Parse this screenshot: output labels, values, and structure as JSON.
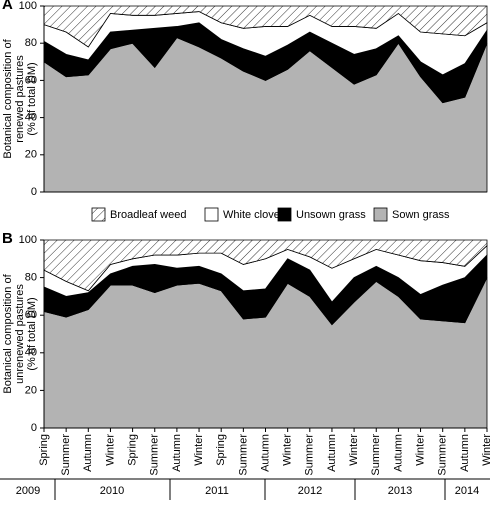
{
  "chart_data": [
    {
      "type": "stacked-area",
      "panel_label": "A",
      "ylabel": [
        "Botanical composition of",
        "renewed pastures",
        "(% of total DM)"
      ],
      "categories": [
        "Spring",
        "Summer",
        "Autumn",
        "Winter",
        "Spring",
        "Summer",
        "Autumn",
        "Winter",
        "Spring",
        "Summer",
        "Autumn",
        "Winter",
        "Summer",
        "Autumn",
        "Winter",
        "Summer",
        "Autumn",
        "Winter",
        "Summer",
        "Autumn",
        "Winter"
      ],
      "ylim": [
        0,
        100
      ],
      "yticks": [
        0,
        20,
        40,
        60,
        80,
        100
      ],
      "series": [
        {
          "name": "Sown grass",
          "color": "#b3b3b3",
          "values": [
            70,
            62,
            63,
            77,
            80,
            67,
            83,
            78,
            72,
            65,
            60,
            66,
            76,
            67,
            58,
            63,
            80,
            62,
            48,
            51,
            80
          ]
        },
        {
          "name": "Unsown grass",
          "color": "#000000",
          "values": [
            11,
            12,
            8,
            9,
            7,
            21,
            6,
            13,
            10,
            12,
            13,
            13,
            10,
            13,
            16,
            14,
            4,
            8,
            15,
            18,
            7
          ]
        },
        {
          "name": "White clover",
          "color": "#ffffff",
          "values": [
            9,
            12,
            7,
            10,
            8,
            7,
            7,
            6,
            9,
            11,
            16,
            10,
            9,
            9,
            15,
            11,
            12,
            16,
            22,
            15,
            4
          ]
        },
        {
          "name": "Broadleaf weed",
          "color": "#ffffff",
          "hatch": true,
          "values": [
            10,
            14,
            22,
            4,
            5,
            5,
            4,
            3,
            9,
            12,
            11,
            11,
            5,
            11,
            11,
            12,
            4,
            14,
            15,
            16,
            9
          ]
        }
      ]
    },
    {
      "type": "stacked-area",
      "panel_label": "B",
      "ylabel": [
        "Botanical composition of",
        "unrenewed pastures",
        "(% of total DM)"
      ],
      "categories": [
        "Spring",
        "Summer",
        "Autumn",
        "Winter",
        "Spring",
        "Summer",
        "Autumn",
        "Winter",
        "Spring",
        "Summer",
        "Autumn",
        "Winter",
        "Summer",
        "Autumn",
        "Winter",
        "Summer",
        "Autumn",
        "Winter",
        "Summer",
        "Autumn",
        "Winter"
      ],
      "years": [
        "2009",
        "2010",
        "2011",
        "2012",
        "2013",
        "2014"
      ],
      "ylim": [
        0,
        100
      ],
      "yticks": [
        0,
        20,
        40,
        60,
        80,
        100
      ],
      "series": [
        {
          "name": "Sown grass",
          "color": "#b3b3b3",
          "values": [
            62,
            59,
            63,
            76,
            76,
            72,
            76,
            77,
            73,
            58,
            59,
            77,
            70,
            55,
            67,
            78,
            70,
            58,
            57,
            56,
            80
          ]
        },
        {
          "name": "Unsown grass",
          "color": "#000000",
          "values": [
            13,
            11,
            9,
            6,
            10,
            15,
            9,
            9,
            9,
            15,
            15,
            13,
            14,
            12,
            13,
            8,
            10,
            13,
            19,
            24,
            12
          ]
        },
        {
          "name": "White clover",
          "color": "#ffffff",
          "values": [
            9,
            8,
            1,
            5,
            4,
            5,
            7,
            7,
            11,
            14,
            16,
            5,
            7,
            18,
            10,
            9,
            12,
            18,
            12,
            6,
            5
          ]
        },
        {
          "name": "Broadleaf weed",
          "color": "#ffffff",
          "hatch": true,
          "values": [
            16,
            22,
            27,
            13,
            10,
            8,
            8,
            7,
            7,
            13,
            10,
            5,
            9,
            15,
            10,
            5,
            8,
            11,
            12,
            14,
            3
          ]
        }
      ]
    }
  ]
}
